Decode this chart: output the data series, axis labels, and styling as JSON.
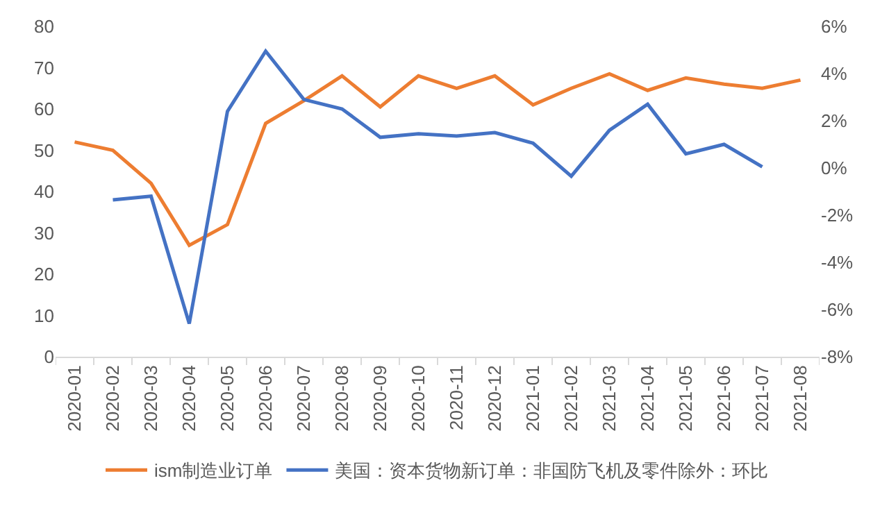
{
  "chart_data": {
    "type": "line",
    "categories": [
      "2020-01",
      "2020-02",
      "2020-03",
      "2020-04",
      "2020-05",
      "2020-06",
      "2020-07",
      "2020-08",
      "2020-09",
      "2020-10",
      "2020-11",
      "2020-12",
      "2021-01",
      "2021-02",
      "2021-03",
      "2021-04",
      "2021-05",
      "2021-06",
      "2021-07",
      "2021-08"
    ],
    "series": [
      {
        "name": "ism制造业订单",
        "color": "#ed7d31",
        "values": [
          52,
          50,
          42,
          27,
          32,
          56.5,
          62,
          68,
          60.5,
          68,
          65,
          68,
          61,
          65,
          68.5,
          64.5,
          67.5,
          66,
          65,
          67
        ]
      },
      {
        "name": "美国：资本货物新订单：非国防飞机及零件除外：环比",
        "color": "#4472c4",
        "axis": "y2",
        "values": [
          null,
          -1.35,
          -1.2,
          -6.6,
          2.4,
          4.95,
          2.9,
          2.5,
          1.3,
          1.45,
          1.35,
          1.5,
          1.05,
          -0.35,
          1.6,
          2.7,
          0.6,
          1.0,
          0.05,
          null
        ]
      }
    ],
    "ylim": [
      0,
      80
    ],
    "yticks": [
      0,
      10,
      20,
      30,
      40,
      50,
      60,
      70,
      80
    ],
    "y2lim": [
      -8,
      6
    ],
    "y2ticks": [
      {
        "value": -8,
        "label": "-8%"
      },
      {
        "value": -6,
        "label": "-6%"
      },
      {
        "value": -4,
        "label": "-4%"
      },
      {
        "value": -2,
        "label": "-2%"
      },
      {
        "value": 0,
        "label": "0%"
      },
      {
        "value": 2,
        "label": "2%"
      },
      {
        "value": 4,
        "label": "4%"
      },
      {
        "value": 6,
        "label": "6%"
      }
    ],
    "grid": false,
    "legend": "bottom",
    "marker": "none",
    "line_style": "solid"
  }
}
